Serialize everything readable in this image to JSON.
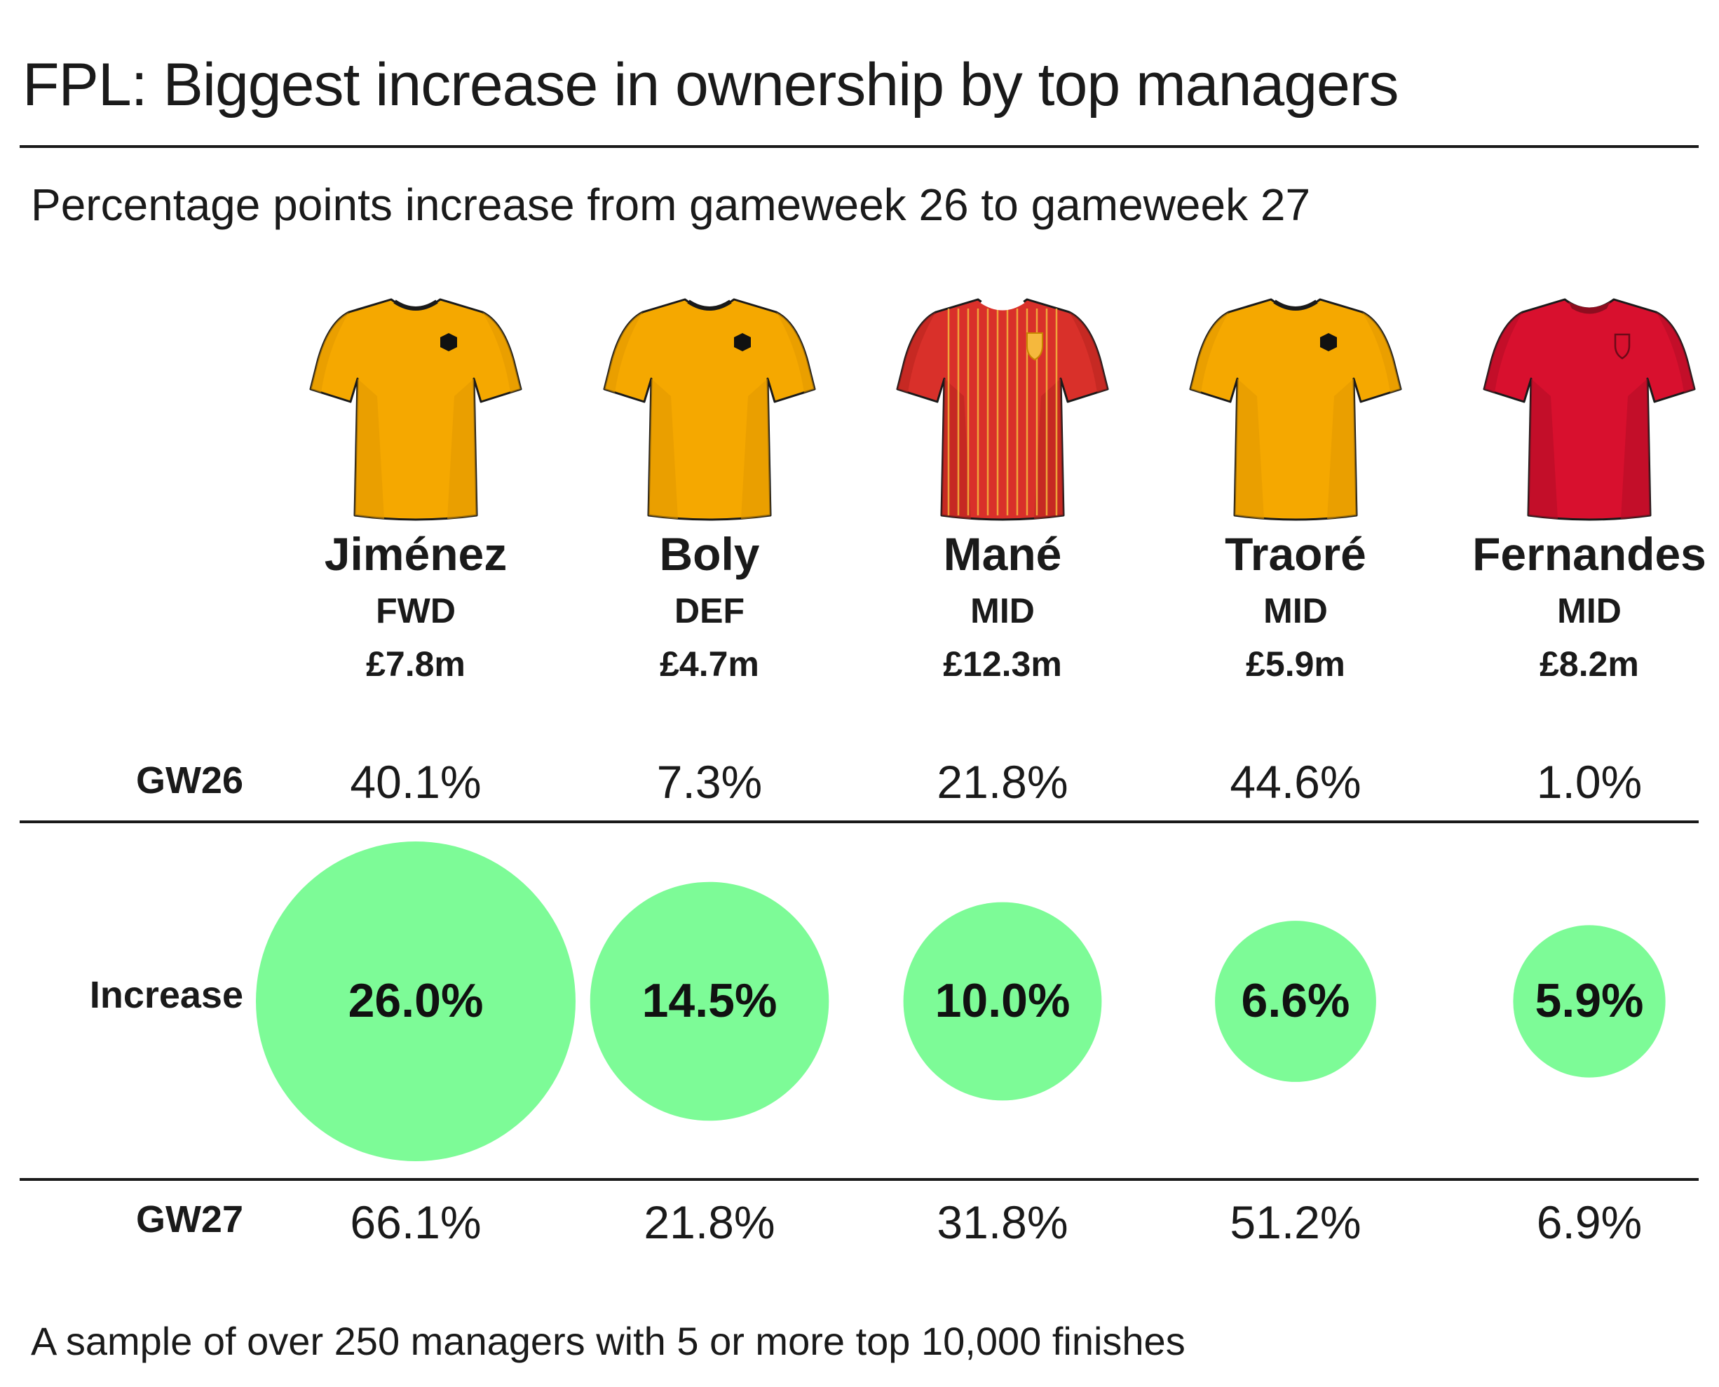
{
  "title": "FPL: Biggest increase in ownership by top managers",
  "subtitle": "Percentage points increase from gameweek 26 to gameweek 27",
  "footer": "A sample of over 250 managers with 5 or more top 10,000 finishes",
  "row_labels": {
    "gw26": "GW26",
    "increase": "Increase",
    "gw27": "GW27"
  },
  "colors": {
    "bubble": "#7dfb97",
    "wolves_shirt": "#f5a800",
    "wolves_shadow": "#e29a00",
    "liverpool_shirt": "#d9302a",
    "liverpool_stripe": "#f5b83d",
    "man_utd_shirt": "#d8102e",
    "rule": "#1a1a1a"
  },
  "players": [
    {
      "name": "Jiménez",
      "position": "FWD",
      "price": "£7.8m",
      "gw26": "40.1%",
      "increase": "26.0%",
      "gw27": "66.1%",
      "shirt": "wolves-shirt-icon"
    },
    {
      "name": "Boly",
      "position": "DEF",
      "price": "£4.7m",
      "gw26": "7.3%",
      "increase": "14.5%",
      "gw27": "21.8%",
      "shirt": "wolves-shirt-icon"
    },
    {
      "name": "Mané",
      "position": "MID",
      "price": "£12.3m",
      "gw26": "21.8%",
      "increase": "10.0%",
      "gw27": "31.8%",
      "shirt": "liverpool-shirt-icon"
    },
    {
      "name": "Traoré",
      "position": "MID",
      "price": "£5.9m",
      "gw26": "44.6%",
      "increase": "6.6%",
      "gw27": "51.2%",
      "shirt": "wolves-shirt-icon"
    },
    {
      "name": "Fernandes",
      "position": "MID",
      "price": "£8.2m",
      "gw26": "1.0%",
      "increase": "5.9%",
      "gw27": "6.9%",
      "shirt": "man-utd-shirt-icon"
    }
  ],
  "chart_data": {
    "type": "bubble",
    "title": "FPL: Biggest increase in ownership by top managers",
    "subtitle": "Percentage points increase from gameweek 26 to gameweek 27",
    "categories": [
      "Jiménez",
      "Boly",
      "Mané",
      "Traoré",
      "Fernandes"
    ],
    "series": [
      {
        "name": "GW26",
        "values": [
          40.1,
          7.3,
          21.8,
          44.6,
          1.0
        ]
      },
      {
        "name": "Increase",
        "values": [
          26.0,
          14.5,
          10.0,
          6.6,
          5.9
        ]
      },
      {
        "name": "GW27",
        "values": [
          66.1,
          21.8,
          31.8,
          51.2,
          6.9
        ]
      }
    ]
  }
}
